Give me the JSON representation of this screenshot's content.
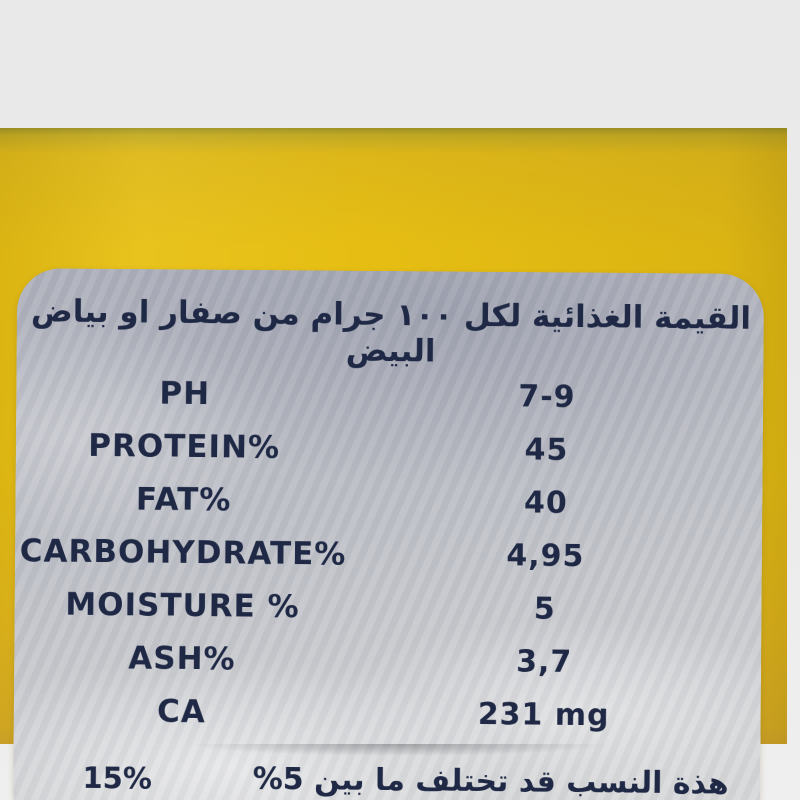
{
  "photo": {
    "package_color": "#e6be13",
    "label_foil_color": "#c3c5cb",
    "ink_color": "#1f2946",
    "page_background": "#eaeaea"
  },
  "label": {
    "title": "القيمة الغذائية لكل ١٠٠ جرام من صفار او بياض البيض",
    "rows": [
      {
        "name": "PH",
        "value": "7-9"
      },
      {
        "name": "PROTEIN%",
        "value": "45"
      },
      {
        "name": "FAT%",
        "value": "40"
      },
      {
        "name": "CARBOHYDRATE%",
        "value": "4,95"
      },
      {
        "name": "MOISTURE %",
        "value": "5"
      },
      {
        "name": "ASH%",
        "value": "3,7"
      },
      {
        "name": "CA",
        "value": "231 mg"
      }
    ],
    "footnote": {
      "left_value": "15%",
      "text": "هذة النسب قد تختلف ما بين 5%"
    }
  }
}
